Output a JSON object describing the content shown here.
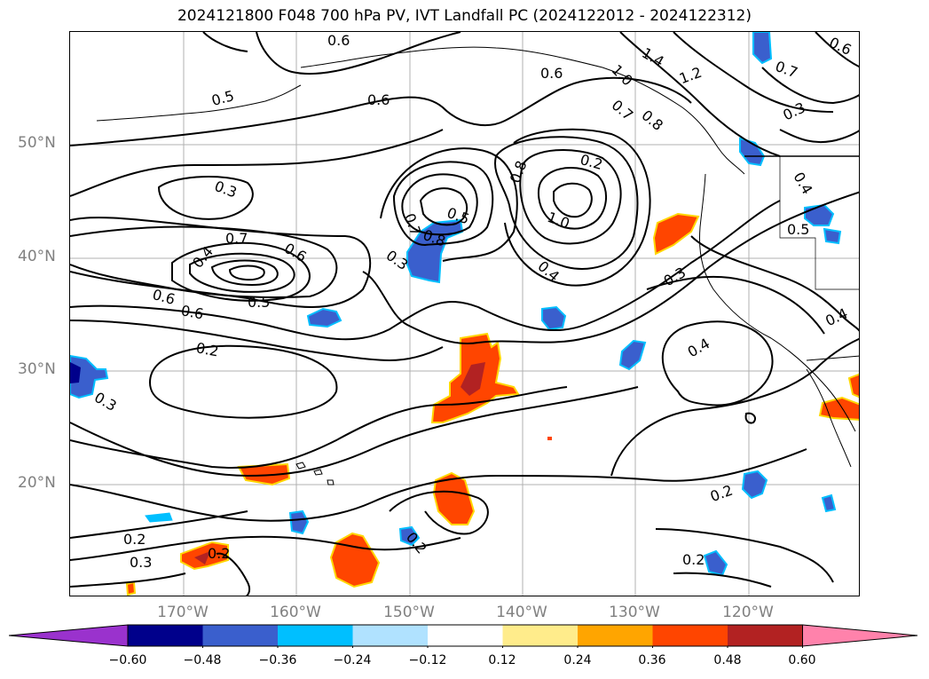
{
  "title": "2024121800 F048 700 hPa PV, IVT Landfall PC (2024122012 - 2024122312)",
  "lat_labels": [
    "50°N",
    "40°N",
    "30°N",
    "20°N"
  ],
  "lon_labels": [
    "170°W",
    "160°W",
    "150°W",
    "140°W",
    "130°W",
    "120°W"
  ],
  "contour_labels": [
    "0.6",
    "1.4",
    "0.6",
    "1.0",
    "1.2",
    "0.7",
    "0.6",
    "0.5",
    "0.6",
    "0.7",
    "0.8",
    "0.3",
    "0.4",
    "0.5",
    "0.3",
    "0.2",
    "0.8",
    "1.0",
    "0.7",
    "0.5",
    "0.8",
    "0.7",
    "0.6",
    "0.4",
    "0.3",
    "0.4",
    "0.6",
    "0.3",
    "0.6",
    "0.5",
    "0.2",
    "0.3",
    "0.4",
    "0.4",
    "0.2",
    "0.2",
    "0.3",
    "0.2",
    "0.2",
    "0.2"
  ],
  "colorbar": {
    "ticks": [
      "−0.60",
      "−0.48",
      "−0.36",
      "−0.24",
      "−0.12",
      "0.12",
      "0.24",
      "0.36",
      "0.48",
      "0.60"
    ],
    "colors": [
      "#9a32cd",
      "#00008b",
      "#3a5fcd",
      "#00bfff",
      "#b0e2ff",
      "#ffffff",
      "#ffec8b",
      "#ffa500",
      "#ff4500",
      "#b22222",
      "#ff82ab"
    ]
  },
  "shading_colors": {
    "positive_light": "#ffd700",
    "positive_mid": "#ff4500",
    "positive_dark": "#b22222",
    "negative_light": "#00bfff",
    "negative_mid": "#3a5fcd",
    "negative_dark": "#00008b"
  }
}
